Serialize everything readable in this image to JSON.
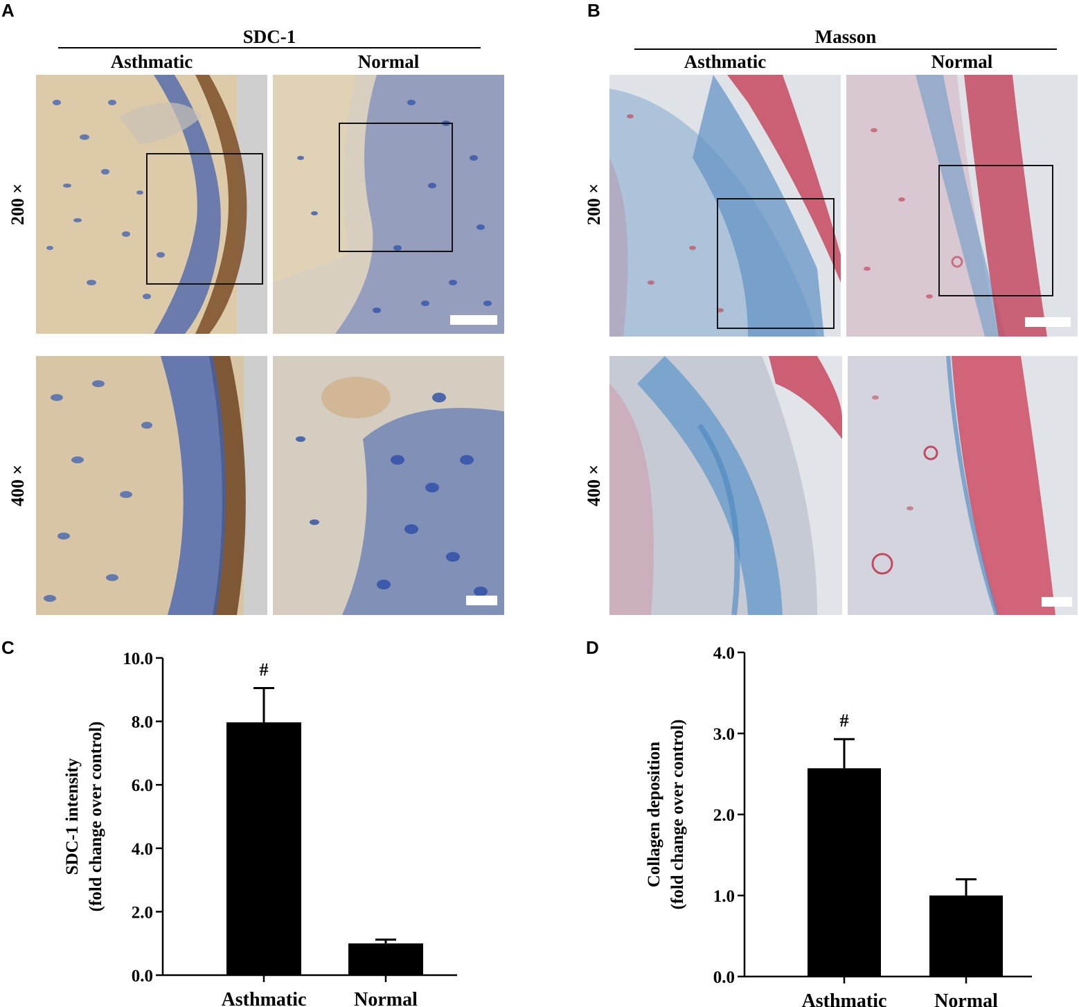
{
  "panels": {
    "A": {
      "letter": "A",
      "stain_title": "SDC-1",
      "columns": [
        "Asthmatic",
        "Normal"
      ],
      "rows": [
        "200 ×",
        "400 ×"
      ]
    },
    "B": {
      "letter": "B",
      "stain_title": "Masson",
      "columns": [
        "Asthmatic",
        "Normal"
      ],
      "rows": [
        "200 ×",
        "400 ×"
      ]
    },
    "C": {
      "letter": "C"
    },
    "D": {
      "letter": "D"
    }
  },
  "colors": {
    "ihc_background": "#d9c6a6",
    "ihc_nuclei": "#3b5fb5",
    "ihc_brown": "#8a5a2b",
    "masson_background": "#d8dde2",
    "masson_blue": "#5b95c8",
    "masson_red": "#c4455a",
    "bar": "#000000"
  },
  "chart_data": [
    {
      "type": "bar",
      "panel": "C",
      "categories": [
        "Asthmatic",
        "Normal"
      ],
      "values": [
        7.97,
        1.0
      ],
      "errors": [
        1.08,
        0.12
      ],
      "annotations": [
        "#",
        ""
      ],
      "ylabel": [
        "SDC-1 intensity",
        "(fold change over control)"
      ],
      "ylim": [
        0,
        10
      ],
      "yticks": [
        "0.0",
        "2.0",
        "4.0",
        "6.0",
        "8.0",
        "10.0"
      ],
      "ytick_values": [
        0,
        2,
        4,
        6,
        8,
        10
      ]
    },
    {
      "type": "bar",
      "panel": "D",
      "categories": [
        "Asthmatic",
        "Normal"
      ],
      "values": [
        2.57,
        1.0
      ],
      "errors": [
        0.36,
        0.2
      ],
      "annotations": [
        "#",
        ""
      ],
      "ylabel": [
        "Collagen deposition",
        "(fold change over control)"
      ],
      "ylim": [
        0,
        4
      ],
      "yticks": [
        "0.0",
        "1.0",
        "2.0",
        "3.0",
        "4.0"
      ],
      "ytick_values": [
        0,
        1,
        2,
        3,
        4
      ]
    }
  ]
}
